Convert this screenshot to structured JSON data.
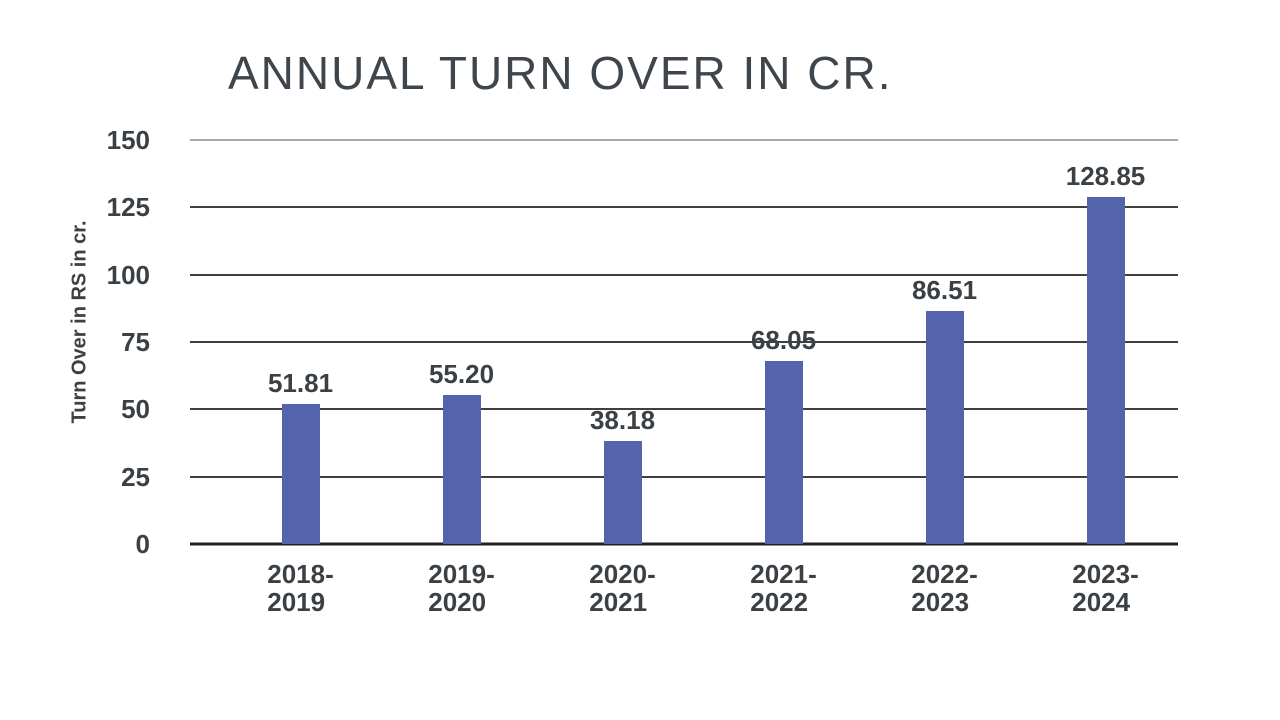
{
  "colors": {
    "bar": "#5363ac",
    "label_text": "#3b4045",
    "title_text": "#3e454c",
    "gridline": "#3f3f3f",
    "gridline_top": "#a8a8a8",
    "axis_line": "#222222",
    "background": "#ffffff"
  },
  "chart_data": {
    "type": "bar",
    "title": "ANNUAL TURN OVER IN CR.",
    "xlabel": "",
    "ylabel": "Turn Over in RS in cr.",
    "ylim": [
      0,
      150
    ],
    "yticks": [
      0,
      25,
      50,
      75,
      100,
      125,
      150
    ],
    "grid": true,
    "legend": false,
    "categories": [
      "2018-2019",
      "2019-2020",
      "2020-2021",
      "2021-2022",
      "2022-2023",
      "2023-2024"
    ],
    "category_display": [
      "2018-\n2019",
      "2019-\n2020",
      "2020-\n2021",
      "2021-\n2022",
      "2022-\n2023",
      "2023-\n2024"
    ],
    "values": [
      51.81,
      55.2,
      38.18,
      68.05,
      86.51,
      128.85
    ],
    "value_labels": [
      "51.81",
      "55.20",
      "38.18",
      "68.05",
      "86.51",
      "128.85"
    ]
  }
}
